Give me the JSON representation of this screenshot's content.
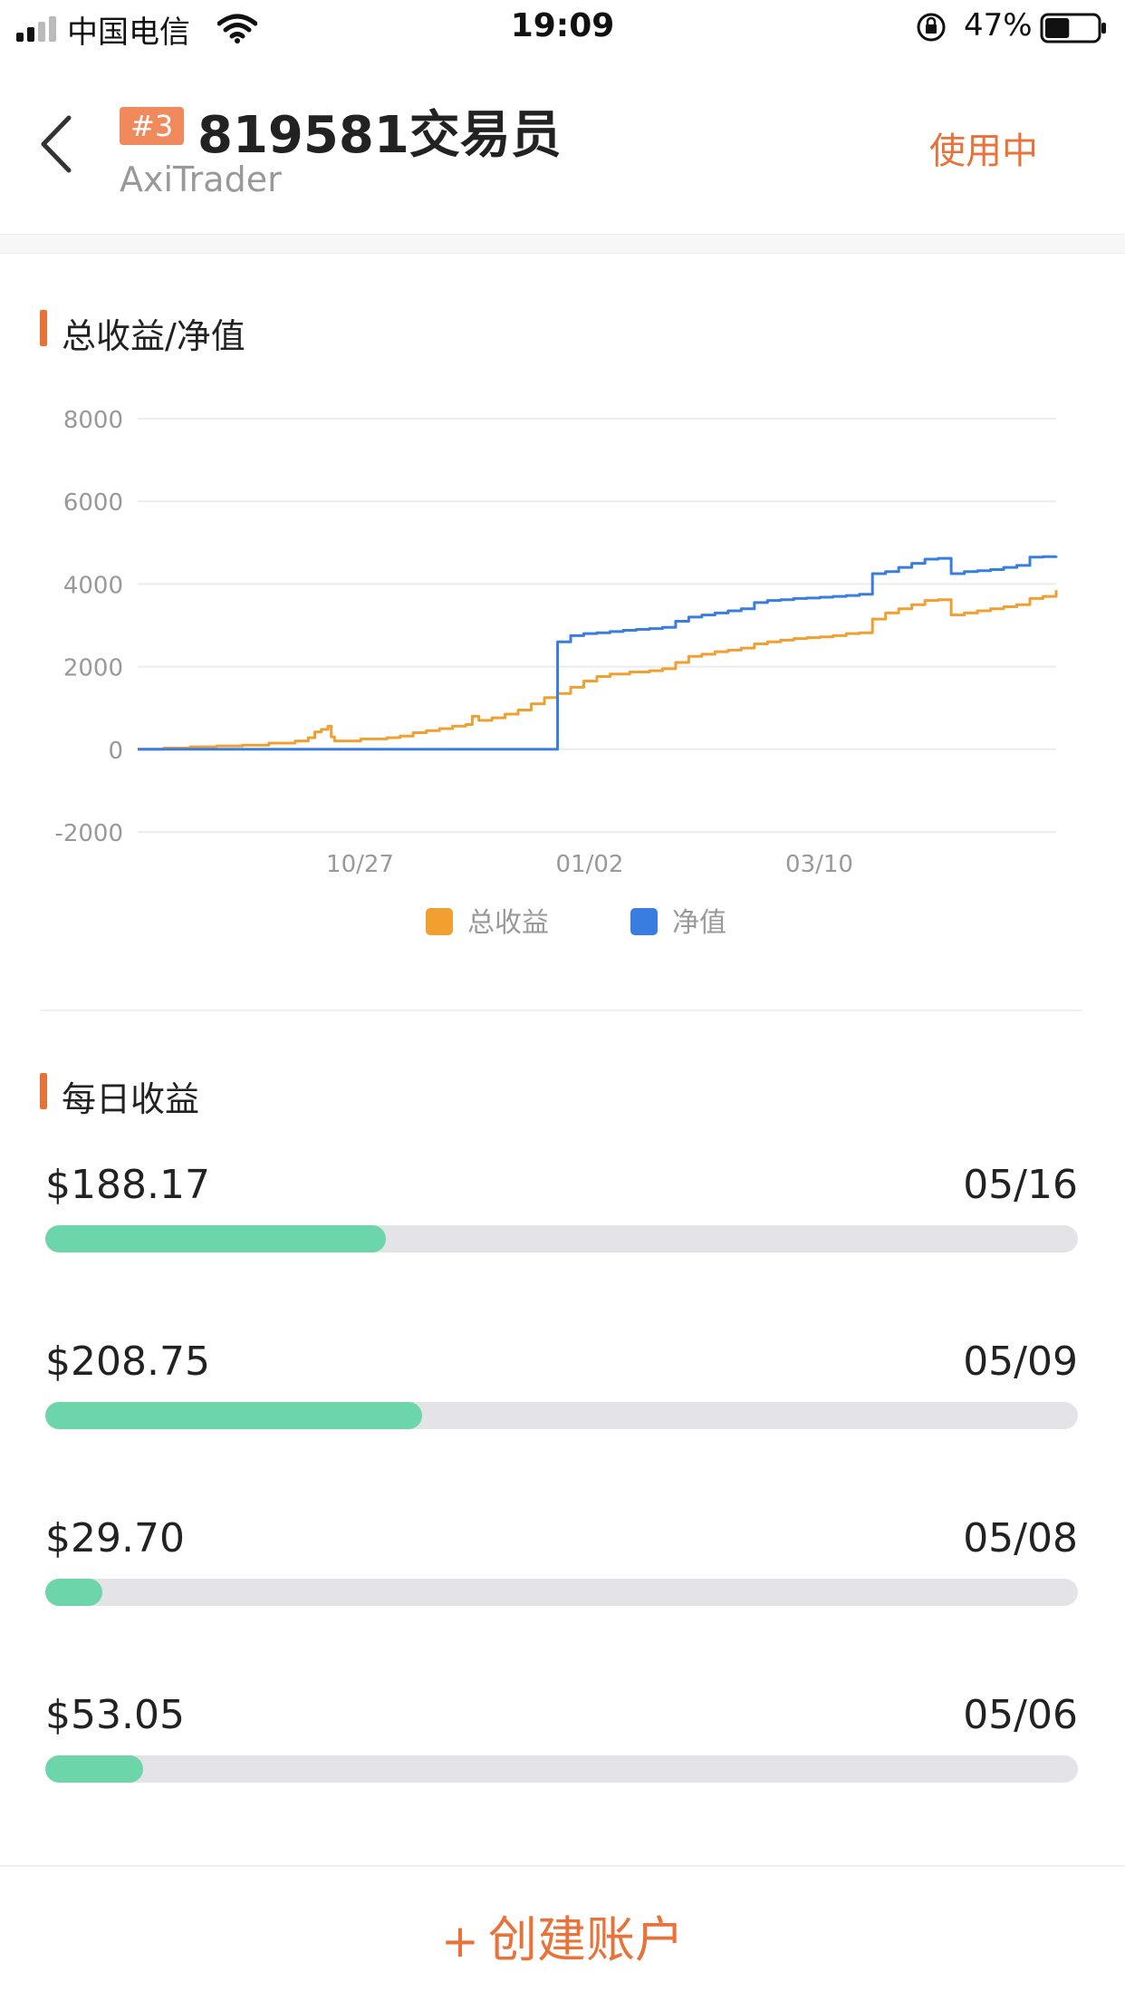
{
  "status_bar": {
    "carrier": "中国电信",
    "time": "19:09",
    "battery_percent": "47%",
    "battery_level": 0.47,
    "icons": [
      "signal-icon",
      "wifi-icon",
      "rotation-lock-icon",
      "battery-icon"
    ]
  },
  "header": {
    "badge": "#3",
    "title": "819581交易员",
    "subtitle": "AxiTrader",
    "status_label": "使用中",
    "back_icon": "chevron-left-icon"
  },
  "colors": {
    "accent": "#e8733a",
    "badge": "#f08a5d",
    "profit_series": "#f0a030",
    "equity_series": "#3a7de0",
    "progress_fill": "#6cd6aa",
    "progress_track": "#e4e4e8"
  },
  "equity_section": {
    "title": "总收益/净值"
  },
  "chart_data": {
    "type": "line",
    "ylim": [
      -2000,
      8000
    ],
    "yticks": [
      8000,
      6000,
      4000,
      2000,
      0,
      -2000
    ],
    "xticks": [
      "10/27",
      "01/02",
      "03/10"
    ],
    "legend": [
      "总收益",
      "净值"
    ],
    "legend_position": "bottom-center",
    "grid": true,
    "series": [
      {
        "name": "总收益",
        "color": "#f0a030",
        "step": true,
        "points": [
          [
            0,
            0
          ],
          [
            4,
            30
          ],
          [
            8,
            60
          ],
          [
            12,
            80
          ],
          [
            16,
            100
          ],
          [
            20,
            150
          ],
          [
            24,
            200
          ],
          [
            26,
            280
          ],
          [
            27,
            420
          ],
          [
            28,
            480
          ],
          [
            29,
            560
          ],
          [
            29.5,
            300
          ],
          [
            30,
            200
          ],
          [
            34,
            250
          ],
          [
            38,
            280
          ],
          [
            40,
            320
          ],
          [
            42,
            400
          ],
          [
            44,
            450
          ],
          [
            46,
            500
          ],
          [
            48,
            560
          ],
          [
            50,
            600
          ],
          [
            51,
            800
          ],
          [
            52,
            700
          ],
          [
            54,
            760
          ],
          [
            56,
            850
          ],
          [
            58,
            950
          ],
          [
            60,
            1100
          ],
          [
            62,
            1250
          ],
          [
            64,
            1350
          ],
          [
            66,
            1500
          ],
          [
            68,
            1650
          ],
          [
            70,
            1760
          ],
          [
            72,
            1820
          ],
          [
            75,
            1870
          ],
          [
            78,
            1900
          ],
          [
            80,
            1950
          ],
          [
            82,
            2100
          ],
          [
            84,
            2250
          ],
          [
            86,
            2300
          ],
          [
            88,
            2360
          ],
          [
            90,
            2400
          ],
          [
            92,
            2450
          ],
          [
            94,
            2550
          ],
          [
            96,
            2600
          ],
          [
            98,
            2640
          ],
          [
            100,
            2680
          ],
          [
            102,
            2700
          ],
          [
            104,
            2720
          ],
          [
            106,
            2750
          ],
          [
            108,
            2800
          ],
          [
            110,
            2820
          ],
          [
            112,
            3150
          ],
          [
            114,
            3300
          ],
          [
            116,
            3400
          ],
          [
            118,
            3500
          ],
          [
            120,
            3600
          ],
          [
            122,
            3620
          ],
          [
            124,
            3250
          ],
          [
            126,
            3300
          ],
          [
            128,
            3350
          ],
          [
            130,
            3400
          ],
          [
            132,
            3450
          ],
          [
            134,
            3500
          ],
          [
            136,
            3650
          ],
          [
            138,
            3700
          ],
          [
            140,
            3850
          ]
        ]
      },
      {
        "name": "净值",
        "color": "#3a7de0",
        "step": true,
        "points": [
          [
            0,
            0
          ],
          [
            64,
            0
          ],
          [
            64,
            2600
          ],
          [
            66,
            2750
          ],
          [
            68,
            2800
          ],
          [
            70,
            2820
          ],
          [
            72,
            2850
          ],
          [
            74,
            2880
          ],
          [
            76,
            2900
          ],
          [
            78,
            2920
          ],
          [
            80,
            2950
          ],
          [
            82,
            3100
          ],
          [
            84,
            3200
          ],
          [
            86,
            3250
          ],
          [
            88,
            3300
          ],
          [
            90,
            3350
          ],
          [
            92,
            3400
          ],
          [
            94,
            3550
          ],
          [
            96,
            3600
          ],
          [
            98,
            3620
          ],
          [
            100,
            3650
          ],
          [
            102,
            3660
          ],
          [
            104,
            3680
          ],
          [
            106,
            3700
          ],
          [
            108,
            3720
          ],
          [
            110,
            3750
          ],
          [
            112,
            4250
          ],
          [
            114,
            4300
          ],
          [
            116,
            4400
          ],
          [
            118,
            4500
          ],
          [
            120,
            4600
          ],
          [
            122,
            4620
          ],
          [
            124,
            4250
          ],
          [
            126,
            4300
          ],
          [
            128,
            4320
          ],
          [
            130,
            4350
          ],
          [
            132,
            4400
          ],
          [
            134,
            4450
          ],
          [
            136,
            4650
          ],
          [
            138,
            4660
          ],
          [
            140,
            4680
          ]
        ]
      }
    ]
  },
  "daily_section": {
    "title": "每日收益",
    "items": [
      {
        "amount": "$188.17",
        "date": "05/16",
        "fraction": 0.33
      },
      {
        "amount": "$208.75",
        "date": "05/09",
        "fraction": 0.365
      },
      {
        "amount": "$29.70",
        "date": "05/08",
        "fraction": 0.055
      },
      {
        "amount": "$53.05",
        "date": "05/06",
        "fraction": 0.095
      }
    ]
  },
  "footer": {
    "create_plus": "+",
    "create_label": "创建账户"
  }
}
